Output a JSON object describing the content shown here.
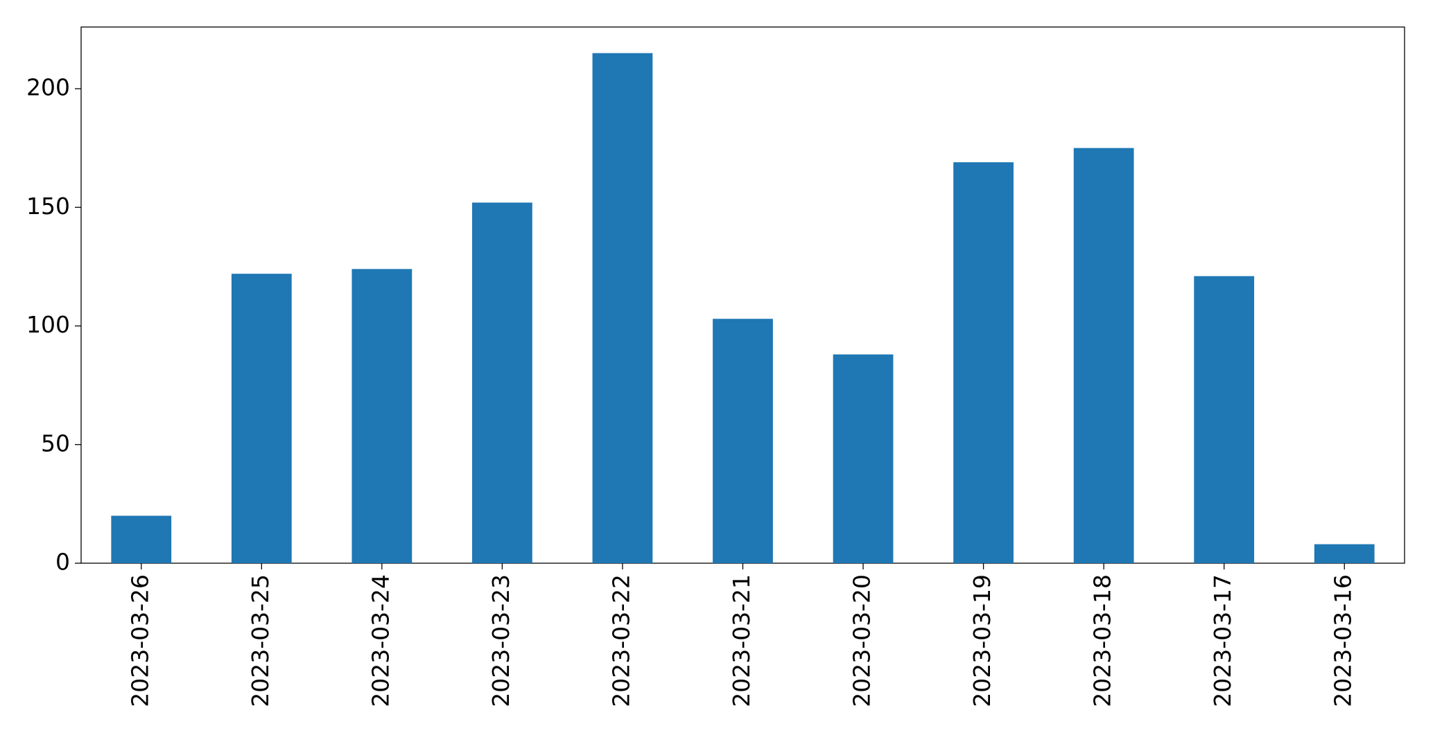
{
  "chart_data": {
    "type": "bar",
    "categories": [
      "2023-03-26",
      "2023-03-25",
      "2023-03-24",
      "2023-03-23",
      "2023-03-22",
      "2023-03-21",
      "2023-03-20",
      "2023-03-19",
      "2023-03-18",
      "2023-03-17",
      "2023-03-16"
    ],
    "values": [
      20,
      122,
      124,
      152,
      215,
      103,
      88,
      169,
      175,
      121,
      8
    ],
    "color": "#1f77b4",
    "ylim": [
      0,
      226
    ],
    "yticks": [
      0,
      50,
      100,
      150,
      200
    ],
    "grid": false
  }
}
